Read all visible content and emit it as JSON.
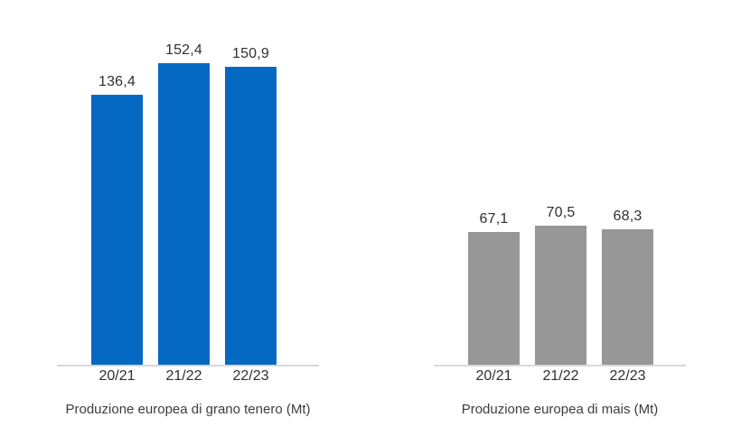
{
  "style": {
    "background": "#ffffff",
    "axis_color": "#d9d9d9",
    "text_color": "#303030",
    "title_color": "#3d3d3d"
  },
  "chart_data": [
    {
      "type": "bar",
      "title": "Produzione europea di grano tenero (Mt)",
      "categories": [
        "20/21",
        "21/22",
        "22/23"
      ],
      "values": [
        136.4,
        152.4,
        150.9
      ],
      "value_labels": [
        "136,4",
        "152,4",
        "150,9"
      ],
      "bar_color": "#0568c3",
      "xlabel": "",
      "ylabel": "",
      "ylim": [
        0,
        166
      ],
      "grid": false,
      "legend": false,
      "data_labels_position": "outside-end"
    },
    {
      "type": "bar",
      "title": "Produzione europea di mais (Mt)",
      "categories": [
        "20/21",
        "21/22",
        "22/23"
      ],
      "values": [
        67.1,
        70.5,
        68.3
      ],
      "value_labels": [
        "67,1",
        "70,5",
        "68,3"
      ],
      "bar_color": "#979797",
      "xlabel": "",
      "ylabel": "",
      "ylim": [
        0,
        166
      ],
      "grid": false,
      "legend": false,
      "data_labels_position": "outside-end"
    }
  ]
}
